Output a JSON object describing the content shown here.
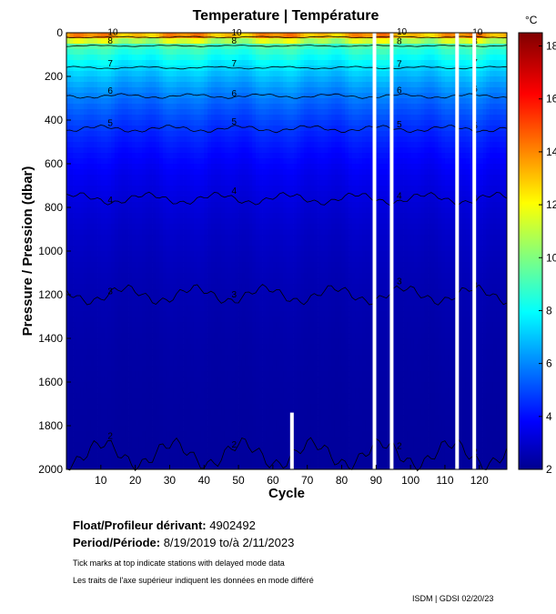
{
  "chart_data": {
    "type": "heatmap",
    "title": "Temperature | Température",
    "xlabel": "Cycle",
    "ylabel": "Pressure / Pression (dbar)",
    "xlim": [
      0,
      128
    ],
    "ylim": [
      2000,
      0
    ],
    "y_reversed": true,
    "x_ticks": [
      10,
      20,
      30,
      40,
      50,
      60,
      70,
      80,
      90,
      100,
      110,
      120
    ],
    "y_ticks": [
      0,
      200,
      400,
      600,
      800,
      1000,
      1200,
      1400,
      1600,
      1800,
      2000
    ],
    "colorbar": {
      "unit": "°C",
      "range": [
        2,
        18.5
      ],
      "ticks": [
        2,
        4,
        6,
        8,
        10,
        12,
        14,
        16,
        18
      ],
      "colormap": "jet"
    },
    "contours": [
      {
        "level": 10,
        "label": "10",
        "approx_pressure_dbar": 20
      },
      {
        "level": 8,
        "label": "8",
        "approx_pressure_dbar": 60
      },
      {
        "level": 7,
        "label": "7",
        "approx_pressure_dbar": 160
      },
      {
        "level": 6,
        "label": "6",
        "approx_pressure_dbar": 290
      },
      {
        "level": 5,
        "label": "5",
        "approx_pressure_dbar": 440
      },
      {
        "level": 4,
        "label": "4",
        "approx_pressure_dbar": 760
      },
      {
        "level": 3,
        "label": "3",
        "approx_pressure_dbar": 1200
      },
      {
        "level": 2,
        "label": "2",
        "approx_pressure_dbar": 1930
      }
    ],
    "missing_cycles": [
      89,
      94,
      113,
      118
    ],
    "profiles_to_pressure": [
      {
        "cycle": 65,
        "max_pressure_dbar": 1740
      }
    ]
  },
  "info": {
    "float_label": "Float/Profileur dérivant:",
    "float_id": "4902492",
    "period_label": "Period/Période:",
    "period_start": "8/19/2019",
    "period_sep": "to/à",
    "period_end": "2/11/2023",
    "note_en": "Tick marks at top indicate stations with delayed mode data",
    "note_fr": "Les traits de l'axe supérieur indiquent les données en mode différé",
    "credit": "ISDM | GDSI  02/20/23"
  }
}
